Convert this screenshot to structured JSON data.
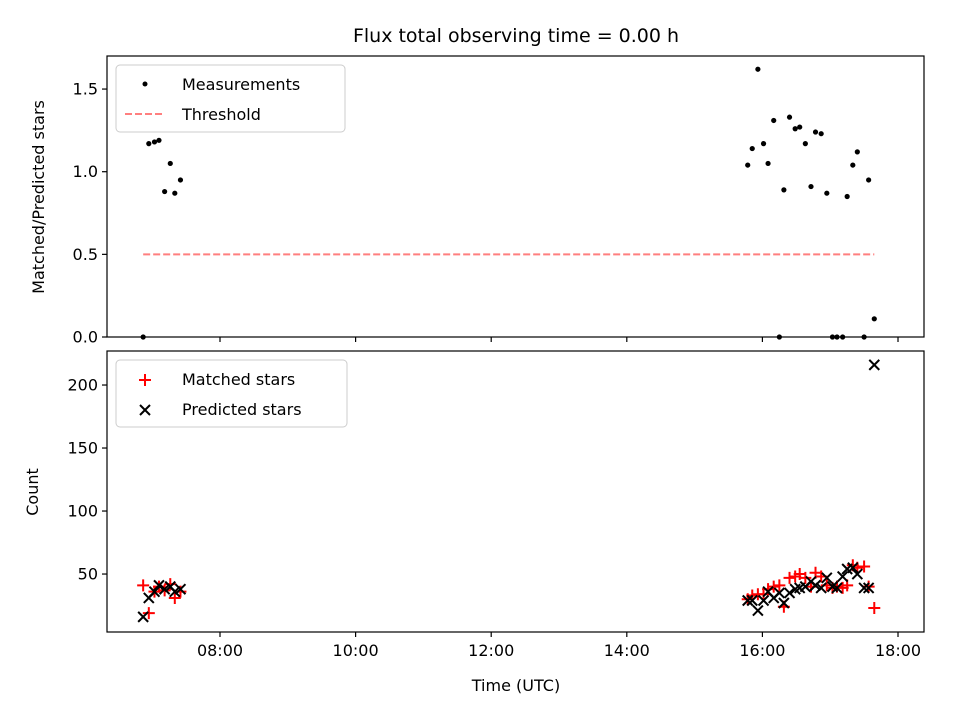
{
  "chart_data": [
    {
      "type": "scatter",
      "title": "Flux total observing time = 0.00 h",
      "xlabel": "",
      "ylabel": "Matched/Predicted stars",
      "xlim": [
        "06:20",
        "18:23"
      ],
      "ylim": [
        0,
        1.7
      ],
      "yticks": [
        0.0,
        0.5,
        1.0,
        1.5
      ],
      "ytick_labels": [
        "0.0",
        "0.5",
        "1.0",
        "1.5"
      ],
      "legend_position": "top-left",
      "grid": false,
      "series": [
        {
          "name": "Measurements",
          "marker": "dot",
          "color": "#000000",
          "points": [
            [
              "06:52",
              0.0
            ],
            [
              "06:57",
              1.17
            ],
            [
              "07:02",
              1.18
            ],
            [
              "07:06",
              1.19
            ],
            [
              "07:11",
              0.88
            ],
            [
              "07:16",
              1.05
            ],
            [
              "07:20",
              0.87
            ],
            [
              "07:25",
              0.95
            ],
            [
              "15:47",
              1.04
            ],
            [
              "15:51",
              1.14
            ],
            [
              "15:56",
              1.62
            ],
            [
              "16:01",
              1.17
            ],
            [
              "16:05",
              1.05
            ],
            [
              "16:10",
              1.31
            ],
            [
              "16:15",
              0.0
            ],
            [
              "16:19",
              0.89
            ],
            [
              "16:24",
              1.33
            ],
            [
              "16:29",
              1.26
            ],
            [
              "16:33",
              1.27
            ],
            [
              "16:38",
              1.17
            ],
            [
              "16:43",
              0.91
            ],
            [
              "16:47",
              1.24
            ],
            [
              "16:52",
              1.23
            ],
            [
              "16:57",
              0.87
            ],
            [
              "17:02",
              0.0
            ],
            [
              "17:06",
              0.0
            ],
            [
              "17:11",
              0.0
            ],
            [
              "17:15",
              0.85
            ],
            [
              "17:20",
              1.04
            ],
            [
              "17:24",
              1.12
            ],
            [
              "17:30",
              0.0
            ],
            [
              "17:34",
              0.95
            ],
            [
              "17:39",
              0.11
            ]
          ]
        },
        {
          "name": "Threshold",
          "marker": "dashed-line",
          "color": "#ff7f7f",
          "points": [
            [
              "06:52",
              0.5
            ],
            [
              "17:39",
              0.5
            ]
          ]
        }
      ]
    },
    {
      "type": "scatter",
      "title": "",
      "xlabel": "Time (UTC)",
      "ylabel": "Count",
      "xlim": [
        "06:20",
        "18:23"
      ],
      "ylim": [
        4,
        227
      ],
      "yticks": [
        50,
        100,
        150,
        200
      ],
      "ytick_labels": [
        "50",
        "100",
        "150",
        "200"
      ],
      "xticks": [
        "08:00",
        "10:00",
        "12:00",
        "14:00",
        "16:00",
        "18:00"
      ],
      "xtick_labels": [
        "08:00",
        "10:00",
        "12:00",
        "14:00",
        "16:00",
        "18:00"
      ],
      "legend_position": "top-left",
      "grid": false,
      "series": [
        {
          "name": "Matched stars",
          "marker": "plus",
          "color": "#ff0000",
          "points": [
            [
              "06:52",
              41
            ],
            [
              "06:57",
              19
            ],
            [
              "07:02",
              36
            ],
            [
              "07:06",
              40
            ],
            [
              "07:11",
              37
            ],
            [
              "07:16",
              42
            ],
            [
              "07:20",
              31
            ],
            [
              "07:25",
              36
            ],
            [
              "15:47",
              30
            ],
            [
              "15:51",
              33
            ],
            [
              "15:56",
              34
            ],
            [
              "16:01",
              34
            ],
            [
              "16:05",
              38
            ],
            [
              "16:10",
              40
            ],
            [
              "16:15",
              41
            ],
            [
              "16:19",
              24
            ],
            [
              "16:24",
              47
            ],
            [
              "16:29",
              48
            ],
            [
              "16:33",
              50
            ],
            [
              "16:38",
              47
            ],
            [
              "16:43",
              40
            ],
            [
              "16:47",
              51
            ],
            [
              "16:52",
              48
            ],
            [
              "16:57",
              41
            ],
            [
              "17:02",
              39
            ],
            [
              "17:06",
              40
            ],
            [
              "17:11",
              39
            ],
            [
              "17:15",
              41
            ],
            [
              "17:20",
              57
            ],
            [
              "17:24",
              55
            ],
            [
              "17:30",
              56
            ],
            [
              "17:34",
              40
            ],
            [
              "17:39",
              23
            ]
          ]
        },
        {
          "name": "Predicted stars",
          "marker": "x",
          "color": "#000000",
          "points": [
            [
              "06:52",
              16
            ],
            [
              "06:57",
              31
            ],
            [
              "07:02",
              36
            ],
            [
              "07:06",
              41
            ],
            [
              "07:11",
              38
            ],
            [
              "07:16",
              40
            ],
            [
              "07:20",
              36
            ],
            [
              "07:25",
              38
            ],
            [
              "15:47",
              29
            ],
            [
              "15:51",
              29
            ],
            [
              "15:56",
              21
            ],
            [
              "16:01",
              29
            ],
            [
              "16:05",
              36
            ],
            [
              "16:10",
              31
            ],
            [
              "16:15",
              35
            ],
            [
              "16:19",
              27
            ],
            [
              "16:24",
              35
            ],
            [
              "16:29",
              38
            ],
            [
              "16:33",
              39
            ],
            [
              "16:38",
              40
            ],
            [
              "16:43",
              44
            ],
            [
              "16:47",
              41
            ],
            [
              "16:52",
              39
            ],
            [
              "16:57",
              47
            ],
            [
              "17:02",
              40
            ],
            [
              "17:06",
              39
            ],
            [
              "17:11",
              48
            ],
            [
              "17:15",
              54
            ],
            [
              "17:20",
              55
            ],
            [
              "17:24",
              50
            ],
            [
              "17:30",
              39
            ],
            [
              "17:34",
              39
            ],
            [
              "17:39",
              216
            ]
          ]
        }
      ]
    }
  ]
}
